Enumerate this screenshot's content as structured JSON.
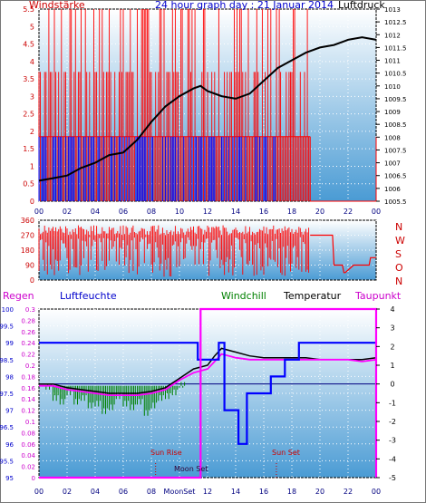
{
  "header": {
    "left_label": "Windstärke",
    "title": "24 hour graph day : 21 Januar 2014",
    "right_label": "Luftdruck"
  },
  "colors": {
    "bg_top": "#ffffff",
    "bg_bottom": "#4a9bd4",
    "wind_gust": "#ff0000",
    "wind_avg": "#0000ff",
    "pressure": "#000000",
    "temp": "#000000",
    "dew": "#ff00ff",
    "windchill": "#008000",
    "humidity": "#0000ff",
    "rain": "#ff00ff",
    "wind_dir": "#ff0000",
    "label_red": "#cc0000",
    "label_blue": "#0000cc",
    "label_magenta": "#cc00cc",
    "label_green": "#008000",
    "grid": "#ffffff",
    "axis_text": "#000080"
  },
  "bottom_header": {
    "regen": "Regen",
    "luftfeuchte": "Luftfeuchte",
    "windchill": "Windchill",
    "temperatur": "Temperatur",
    "taupunkt": "Taupunkt"
  },
  "compass": [
    "N",
    "W",
    "S",
    "O",
    "N"
  ],
  "annotations": {
    "sun_rise": "Sun Rise",
    "sun_set": "Sun Set",
    "moon_set": "Moon Set",
    "moon_rise": "MoonRise"
  },
  "chart_data": [
    {
      "type": "line",
      "title": "24 hour graph day : 21 Januar 2014",
      "x_ticks": [
        "00",
        "02",
        "04",
        "06",
        "08",
        "10",
        "12",
        "14",
        "16",
        "18",
        "20",
        "22",
        "00"
      ],
      "left_axis": {
        "label": "Windstärke",
        "ticks": [
          "0",
          "0.5",
          "1",
          "1.5",
          "2",
          "2.5",
          "3",
          "3.5",
          "4",
          "4.5",
          "5",
          "5.5"
        ],
        "ylim": [
          0,
          5.5
        ]
      },
      "right_axis": {
        "label": "Luftdruck",
        "ticks": [
          "1005.5",
          "1006",
          "1006.5",
          "1007",
          "1007.5",
          "1008",
          "1008.5",
          "1009",
          "1009.5",
          "1010",
          "1010.5",
          "1011",
          "1011.5",
          "1012",
          "1012.5",
          "1013"
        ],
        "ylim": [
          1005.5,
          1013
        ]
      },
      "series": [
        {
          "name": "Luftdruck",
          "axis": "right",
          "x": [
            0,
            1,
            2,
            3,
            4,
            5,
            6,
            7,
            8,
            9,
            10,
            11,
            11.5,
            12,
            13,
            14,
            15,
            16,
            17,
            18,
            19,
            20,
            21,
            22,
            23,
            24
          ],
          "y": [
            1006.3,
            1006.4,
            1006.5,
            1006.8,
            1007.0,
            1007.3,
            1007.4,
            1007.9,
            1008.6,
            1009.2,
            1009.6,
            1009.9,
            1010.0,
            1009.8,
            1009.6,
            1009.5,
            1009.7,
            1010.2,
            1010.7,
            1011.0,
            1011.3,
            1011.5,
            1011.6,
            1011.8,
            1011.9,
            1011.8
          ]
        }
      ]
    },
    {
      "type": "line",
      "title": "",
      "x_ticks": [],
      "left_axis": {
        "label": "",
        "ticks": [
          "0",
          "90",
          "180",
          "270",
          "360"
        ],
        "ylim": [
          0,
          360
        ]
      },
      "series": [
        {
          "name": "",
          "x": [
            19.3,
            20.0,
            20.1,
            20.3,
            20.9,
            21.0,
            21.6,
            21.7,
            21.8,
            22.4,
            22.5,
            23.5,
            23.6,
            24.0
          ],
          "y": [
            270,
            270,
            270,
            270,
            270,
            90,
            90,
            45,
            45,
            90,
            90,
            90,
            135,
            135
          ]
        }
      ]
    },
    {
      "type": "line",
      "title": "",
      "x_ticks": [
        "00",
        "02",
        "04",
        "06",
        "08",
        "MoonSet",
        "12",
        "14",
        "16",
        "18",
        "20",
        "22",
        "00"
      ],
      "axes": {
        "humidity": {
          "label": "Luftfeuchte",
          "ticks": [
            "95",
            "95.5",
            "96",
            "96.5",
            "97",
            "97.5",
            "98",
            "98.5",
            "99",
            "99.5",
            "100"
          ],
          "ylim": [
            95,
            100
          ]
        },
        "rain": {
          "label": "Regen",
          "ticks": [
            "0",
            "0.02",
            "0.04",
            "0.06",
            "0.08",
            "0.1",
            "0.12",
            "0.14",
            "0.16",
            "0.18",
            "0.2",
            "0.22",
            "0.24",
            "0.26",
            "0.28",
            "0.3"
          ],
          "ylim": [
            0,
            0.3
          ]
        },
        "temperature": {
          "label": "Temperatur",
          "ticks": [
            "-5",
            "-4",
            "-3",
            "-2",
            "-1",
            "0",
            "1",
            "2",
            "3",
            "4"
          ],
          "ylim": [
            -5,
            4
          ]
        }
      },
      "series": [
        {
          "name": "Temperatur",
          "axis": "temperature",
          "x": [
            0,
            1,
            2,
            3,
            4,
            5,
            6,
            7,
            8,
            9,
            10,
            11,
            12,
            12.5,
            13,
            14,
            15,
            16,
            17,
            18,
            19,
            20,
            21,
            22,
            23,
            24
          ],
          "y": [
            0.0,
            0.0,
            -0.2,
            -0.3,
            -0.4,
            -0.5,
            -0.5,
            -0.5,
            -0.4,
            -0.2,
            0.3,
            0.8,
            1.0,
            1.5,
            1.9,
            1.7,
            1.5,
            1.4,
            1.4,
            1.4,
            1.4,
            1.3,
            1.3,
            1.3,
            1.3,
            1.4
          ]
        },
        {
          "name": "Taupunkt",
          "axis": "temperature",
          "x": [
            0,
            1,
            2,
            3,
            4,
            5,
            6,
            7,
            8,
            9,
            10,
            11,
            12,
            12.5,
            13,
            14,
            15,
            16,
            17,
            18,
            19,
            20,
            21,
            22,
            23,
            24
          ],
          "y": [
            -0.1,
            -0.1,
            -0.3,
            -0.4,
            -0.5,
            -0.6,
            -0.6,
            -0.6,
            -0.5,
            -0.3,
            0.2,
            0.6,
            0.8,
            1.2,
            1.6,
            1.4,
            1.3,
            1.3,
            1.3,
            1.3,
            1.3,
            1.3,
            1.3,
            1.3,
            1.2,
            1.3
          ]
        },
        {
          "name": "Luftfeuchte",
          "axis": "humidity",
          "x": [
            0,
            11.3,
            11.3,
            12.8,
            12.8,
            13.2,
            13.2,
            14.2,
            14.2,
            14.8,
            14.8,
            16.5,
            16.5,
            17.5,
            17.5,
            18.5,
            18.5,
            24
          ],
          "y": [
            99,
            99,
            98.5,
            98.5,
            99,
            99,
            97,
            97,
            96,
            96,
            97.5,
            97.5,
            98,
            98,
            98.5,
            98.5,
            99,
            99
          ]
        },
        {
          "name": "Regen",
          "axis": "rain",
          "x": [
            0,
            11.5,
            11.5,
            24,
            24
          ],
          "y": [
            0,
            0,
            0.3,
            0.3,
            0
          ]
        }
      ],
      "windchill_bars": {
        "x": [
          0.5,
          1,
          1.5,
          2,
          2.5,
          3,
          3.5,
          4,
          4.5,
          5,
          5.5,
          6,
          6.5,
          7,
          7.5,
          8,
          8.5,
          9,
          9.5,
          10
        ],
        "y": [
          -0.3,
          -0.9,
          -1.1,
          -0.6,
          -1.1,
          -0.9,
          -1.3,
          -1.2,
          -1.6,
          -1.4,
          -0.8,
          -1.2,
          -1.4,
          -1.1,
          -1.7,
          -1.3,
          -0.9,
          -0.8,
          -0.6,
          -0.2
        ]
      }
    }
  ]
}
